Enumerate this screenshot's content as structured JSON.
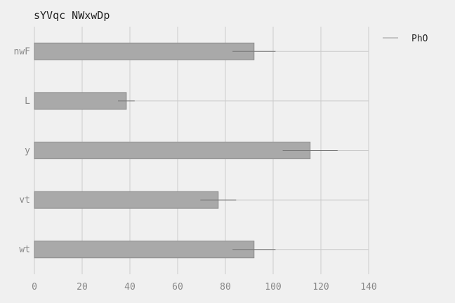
{
  "chart_data": {
    "type": "bar",
    "orientation": "horizontal",
    "title": "sYVqc NWxwDp",
    "xlabel": "",
    "ylabel": "",
    "categories": [
      "nwF",
      "L",
      "y",
      "vt",
      "wt"
    ],
    "series": [
      {
        "name": "PhO",
        "values": [
          92,
          38.5,
          115.5,
          77,
          92
        ],
        "errors": [
          9,
          3.5,
          11.5,
          7.5,
          9
        ]
      }
    ],
    "xlim": [
      0,
      140
    ],
    "xticks": [
      0,
      20,
      40,
      60,
      80,
      100,
      120,
      140
    ],
    "grid": true,
    "legend": "top-right",
    "colors": {
      "bar_fill": "#a9a9a9",
      "bar_stroke": "#8a8a8a",
      "error_bar": "#777777",
      "grid": "#cbcbcb",
      "background": "#f0f0f0",
      "legend_swatch": "#b5b5b5"
    }
  }
}
